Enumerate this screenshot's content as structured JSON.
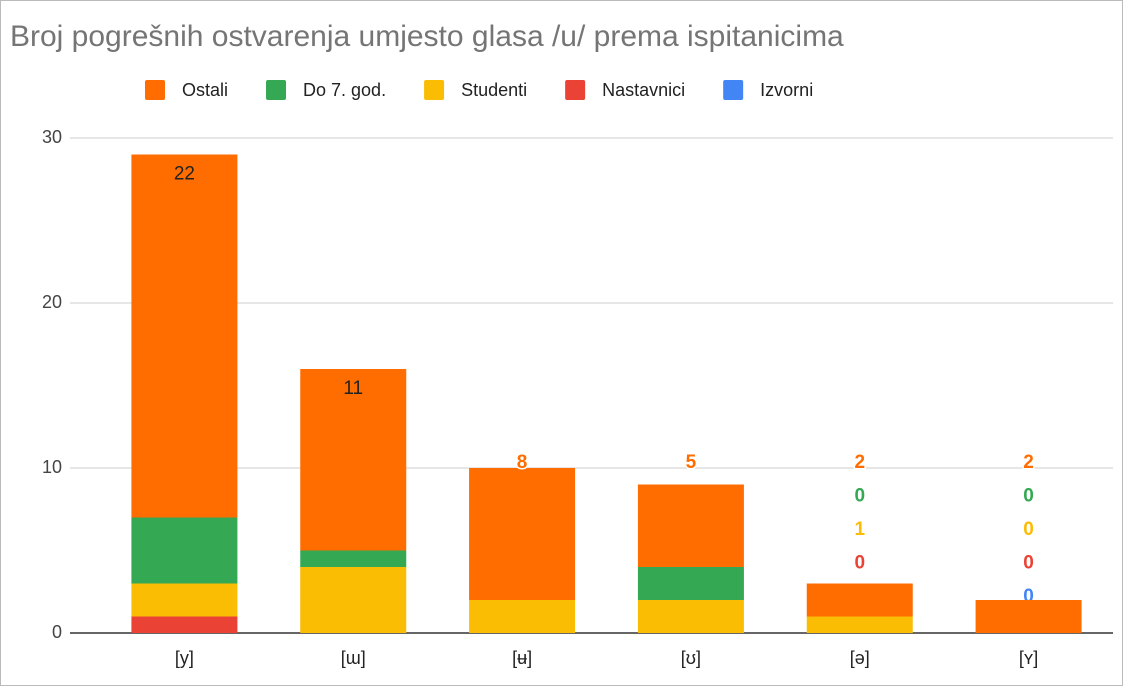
{
  "chart_data": {
    "type": "stacked_bar",
    "title": "Broj pogrešnih ostvarenja umjesto glasa /u/ prema ispitanicima",
    "categories": [
      "[y]",
      "[ɯ]",
      "[ʉ]",
      "[ʊ]",
      "[ə]",
      "[ʏ]"
    ],
    "series": [
      {
        "name": "Ostali",
        "color": "#ff6d01",
        "values": [
          22,
          11,
          8,
          5,
          2,
          2
        ]
      },
      {
        "name": "Do 7. god.",
        "color": "#34a853",
        "values": [
          4,
          1,
          0,
          2,
          0,
          0
        ]
      },
      {
        "name": "Studenti",
        "color": "#fbbc04",
        "values": [
          2,
          4,
          2,
          2,
          1,
          0
        ]
      },
      {
        "name": "Nastavnici",
        "color": "#ea4335",
        "values": [
          1,
          0,
          0,
          0,
          0,
          0
        ]
      },
      {
        "name": "Izvorni",
        "color": "#4285f4",
        "values": [
          0,
          0,
          0,
          0,
          0,
          0
        ]
      }
    ],
    "ylim": [
      0,
      30
    ],
    "yticks": [
      0,
      10,
      20,
      30
    ],
    "grid": true,
    "legend": "top"
  }
}
